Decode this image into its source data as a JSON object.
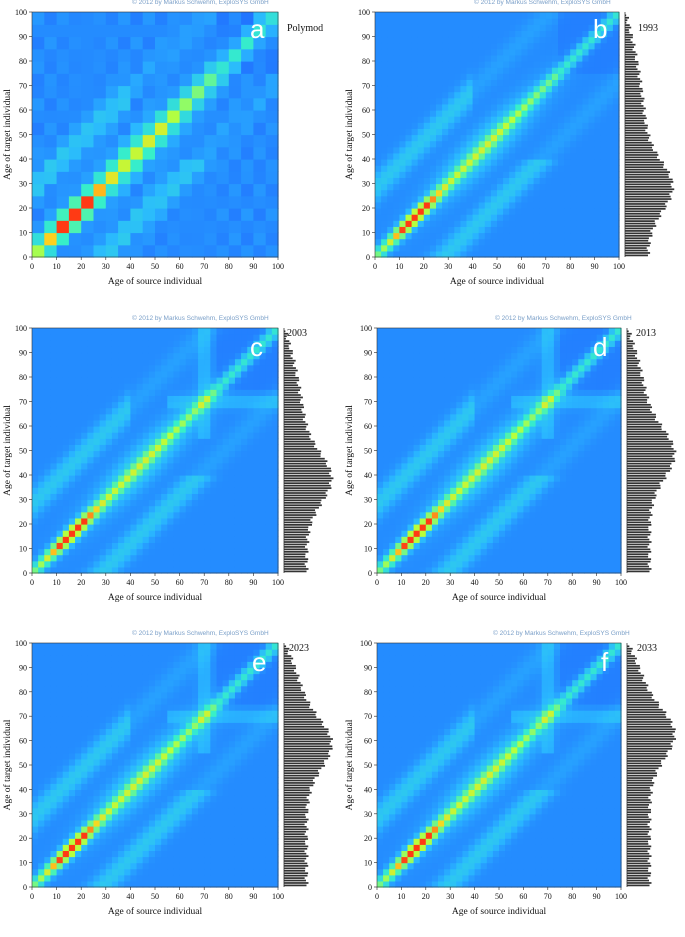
{
  "copyright": "© 2012 by Markus Schwehm, ExploSYS GmbH",
  "chart_data": [
    {
      "type": "heatmap",
      "panel": "a",
      "year_label": "Polymod",
      "show_copyright": true,
      "has_histogram": false,
      "xlabel": "Age of source individual",
      "ylabel": "Age of target individual",
      "xlim": [
        0,
        100
      ],
      "ylim": [
        0,
        100
      ],
      "xticks": [
        "0",
        "10",
        "20",
        "30",
        "40",
        "50",
        "60",
        "70",
        "80",
        "90",
        "100"
      ],
      "yticks": [
        "0",
        "10",
        "20",
        "30",
        "40",
        "50",
        "60",
        "70",
        "80",
        "90",
        "100"
      ],
      "colormap": [
        "#1a3cff",
        "#2ab8ff",
        "#37f0c8",
        "#b8ff3c",
        "#ffd21e",
        "#ff3a14"
      ]
    },
    {
      "type": "heatmap",
      "panel": "b",
      "year_label": "1993",
      "show_copyright": true,
      "has_histogram": true,
      "xlabel": "Age of source individual",
      "ylabel": "Age of target individual",
      "xlim": [
        0,
        100
      ],
      "ylim": [
        0,
        100
      ],
      "xticks": [
        "0",
        "10",
        "20",
        "30",
        "40",
        "50",
        "60",
        "70",
        "80",
        "90",
        "100"
      ],
      "yticks": [
        "0",
        "10",
        "20",
        "30",
        "40",
        "50",
        "60",
        "70",
        "80",
        "90",
        "100"
      ]
    },
    {
      "type": "heatmap",
      "panel": "c",
      "year_label": "2003",
      "show_copyright": true,
      "has_histogram": true,
      "xlabel": "Age of source individual",
      "ylabel": "Age of target individual",
      "xlim": [
        0,
        100
      ],
      "ylim": [
        0,
        100
      ],
      "xticks": [
        "0",
        "10",
        "20",
        "30",
        "40",
        "50",
        "60",
        "70",
        "80",
        "90",
        "100"
      ],
      "yticks": [
        "0",
        "10",
        "20",
        "30",
        "40",
        "50",
        "60",
        "70",
        "80",
        "90",
        "100"
      ]
    },
    {
      "type": "heatmap",
      "panel": "d",
      "year_label": "2013",
      "show_copyright": true,
      "has_histogram": true,
      "xlabel": "Age of source individual",
      "ylabel": "Age of target individual",
      "xlim": [
        0,
        100
      ],
      "ylim": [
        0,
        100
      ],
      "xticks": [
        "0",
        "10",
        "20",
        "30",
        "40",
        "50",
        "60",
        "70",
        "80",
        "90",
        "100"
      ],
      "yticks": [
        "0",
        "10",
        "20",
        "30",
        "40",
        "50",
        "60",
        "70",
        "80",
        "90",
        "100"
      ]
    },
    {
      "type": "heatmap",
      "panel": "e",
      "year_label": "2023",
      "show_copyright": true,
      "has_histogram": true,
      "xlabel": "Age of source individual",
      "ylabel": "Age of target individual",
      "xlim": [
        0,
        100
      ],
      "ylim": [
        0,
        100
      ],
      "xticks": [
        "0",
        "10",
        "20",
        "30",
        "40",
        "50",
        "60",
        "70",
        "80",
        "90",
        "100"
      ],
      "yticks": [
        "0",
        "10",
        "20",
        "30",
        "40",
        "50",
        "60",
        "70",
        "80",
        "90",
        "100"
      ]
    },
    {
      "type": "heatmap",
      "panel": "f",
      "year_label": "2033",
      "show_copyright": true,
      "has_histogram": true,
      "xlabel": "Age of source individual",
      "ylabel": "Age of target individual",
      "xlim": [
        0,
        100
      ],
      "ylim": [
        0,
        100
      ],
      "xticks": [
        "0",
        "10",
        "20",
        "30",
        "40",
        "50",
        "60",
        "70",
        "80",
        "90",
        "100"
      ],
      "yticks": [
        "0",
        "10",
        "20",
        "30",
        "40",
        "50",
        "60",
        "70",
        "80",
        "90",
        "100"
      ]
    }
  ]
}
